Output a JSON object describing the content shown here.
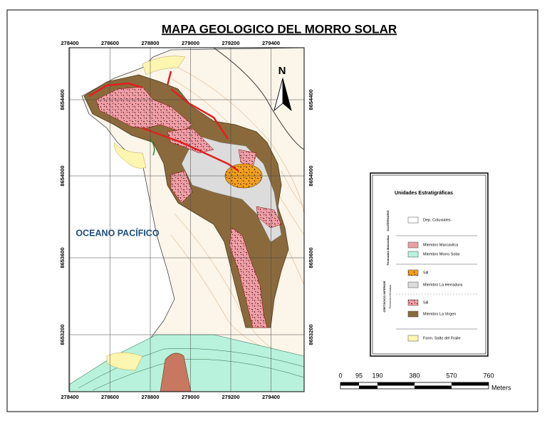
{
  "title": "MAPA GEOLOGICO DEL MORRO SOLAR",
  "map": {
    "north": "N",
    "ocean_label": "OCEANO PACÍFICO",
    "x_grid": [
      278400,
      278600,
      278800,
      279000,
      279200,
      279400
    ],
    "y_grid": [
      8654400,
      8654000,
      8653600,
      8653200
    ]
  },
  "legend": {
    "title": "Unidades Estratigráficas",
    "groups": [
      {
        "label": "CUATERNARIO",
        "items": [
          {
            "label": "Dep. Coluviales",
            "color": "#ffffff"
          }
        ]
      },
      {
        "label": "Formación Marcavilca",
        "items": [
          {
            "label": "Miembro Marcavilca",
            "color": "#e8a0a4"
          },
          {
            "label": "Miembro Morro Solar",
            "color": "#b8f2dc"
          }
        ]
      },
      {
        "label": "CRETÁCICO INFERIOR",
        "sublabel": "Formación Herradura",
        "items": [
          {
            "label": "Sill",
            "color": "#f0a020"
          },
          {
            "label": "Miembro La Herradura",
            "color": "#dcdcdc"
          },
          {
            "label": "Sill",
            "color": "#f4b0b0"
          },
          {
            "label": "Miembro La Virgen",
            "color": "#8a6a3c"
          }
        ]
      },
      {
        "items": [
          {
            "label": "Form. Salto del Fraile",
            "color": "#fdf6b0"
          }
        ]
      }
    ]
  },
  "scale": {
    "ticks": [
      0,
      95,
      190,
      380,
      570,
      760
    ],
    "unit": "Meters"
  }
}
